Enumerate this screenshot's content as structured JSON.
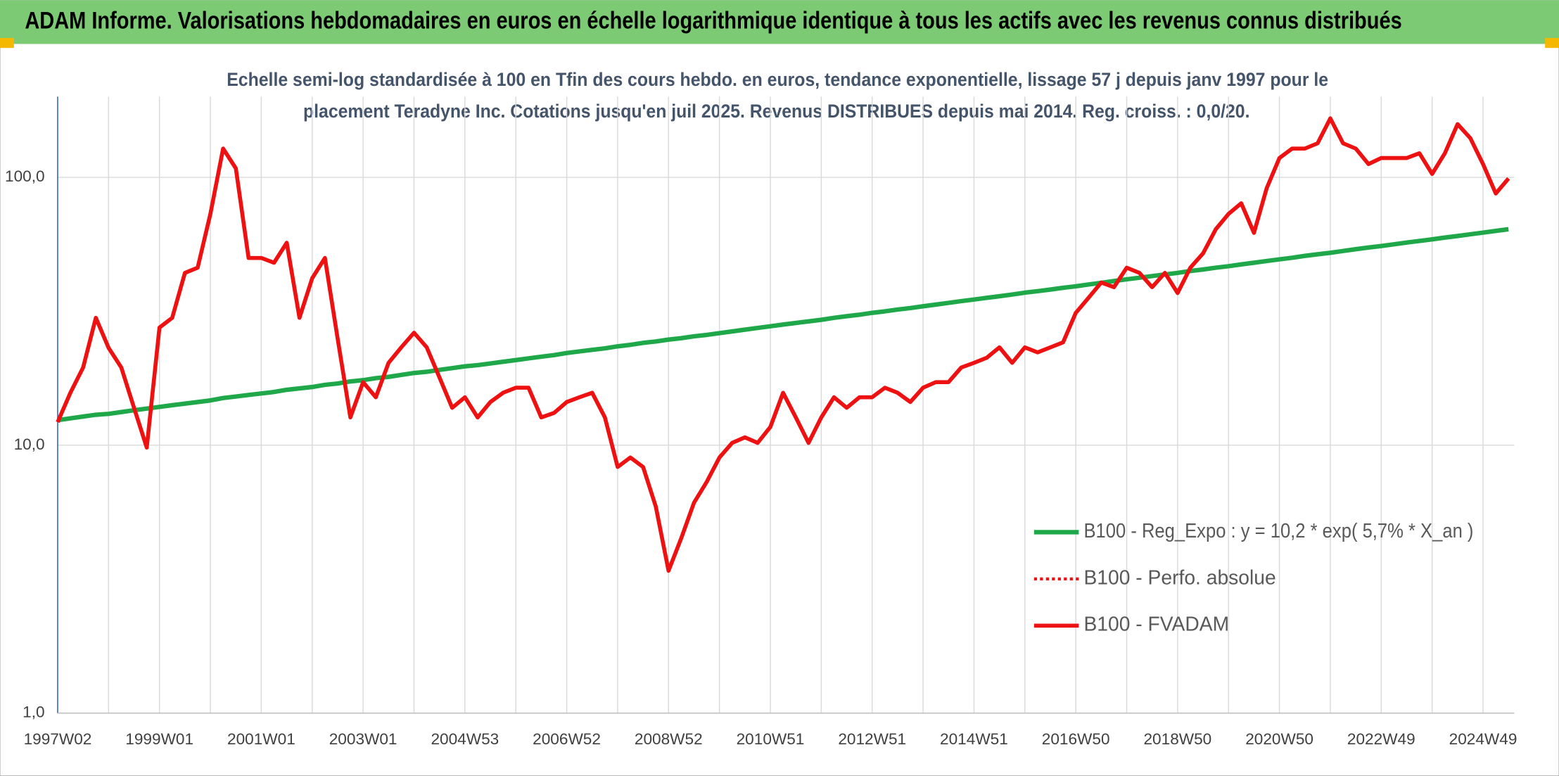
{
  "chart_data": {
    "type": "line",
    "title": "ADAM Informe. Valorisations hebdomadaires en euros en échelle logarithmique identique à tous les actifs avec les revenus connus distribués",
    "subtitle": [
      "Echelle semi-log standardisée à 100 en Tfin des cours hebdo. en euros, tendance exponentielle, lissage 57 j depuis janv 1997 pour le",
      "placement Teradyne Inc. Cotations jusqu'en juil 2025. Revenus DISTRIBUES depuis mai 2014. Reg. croiss. : 0,0/20."
    ],
    "log_scale": true,
    "grid": true,
    "legend": "right",
    "ylim": [
      1,
      200
    ],
    "yticks": [
      {
        "value": 1,
        "label": "1,0"
      },
      {
        "value": 10,
        "label": "10,0"
      },
      {
        "value": 100,
        "label": "100,0"
      }
    ],
    "categories": [
      "1997W02",
      null,
      null,
      null,
      null,
      null,
      null,
      null,
      "1999W01",
      null,
      null,
      null,
      null,
      null,
      null,
      null,
      "2001W01",
      null,
      null,
      null,
      null,
      null,
      null,
      null,
      "2003W01",
      null,
      null,
      null,
      null,
      null,
      null,
      null,
      "2004W53",
      null,
      null,
      null,
      null,
      null,
      null,
      null,
      "2006W52",
      null,
      null,
      null,
      null,
      null,
      null,
      null,
      "2008W52",
      null,
      null,
      null,
      null,
      null,
      null,
      null,
      "2010W51",
      null,
      null,
      null,
      null,
      null,
      null,
      null,
      "2012W51",
      null,
      null,
      null,
      null,
      null,
      null,
      null,
      "2014W51",
      null,
      null,
      null,
      null,
      null,
      null,
      null,
      "2016W50",
      null,
      null,
      null,
      null,
      null,
      null,
      null,
      "2018W50",
      null,
      null,
      null,
      null,
      null,
      null,
      null,
      "2020W50",
      null,
      null,
      null,
      null,
      null,
      null,
      null,
      "2022W49",
      null,
      null,
      null,
      null,
      null,
      null,
      null,
      "2024W49",
      null,
      null
    ],
    "series": [
      {
        "name": "B100 - Reg_Expo : y = 10,2 * exp( 5,7% *  X_an )",
        "color": "#1fa84a",
        "dash": "solid",
        "width": 4.5,
        "values": [
          12.4,
          12.6,
          12.8,
          13.0,
          13.1,
          13.3,
          13.5,
          13.7,
          13.9,
          14.1,
          14.3,
          14.5,
          14.7,
          15.0,
          15.2,
          15.4,
          15.6,
          15.8,
          16.1,
          16.3,
          16.5,
          16.8,
          17.0,
          17.3,
          17.5,
          17.8,
          18.0,
          18.3,
          18.6,
          18.8,
          19.1,
          19.4,
          19.7,
          19.9,
          20.2,
          20.5,
          20.8,
          21.1,
          21.4,
          21.7,
          22.1,
          22.4,
          22.7,
          23.0,
          23.4,
          23.7,
          24.1,
          24.4,
          24.8,
          25.1,
          25.5,
          25.8,
          26.2,
          26.6,
          27.0,
          27.4,
          27.8,
          28.2,
          28.6,
          29.0,
          29.4,
          29.9,
          30.3,
          30.7,
          31.2,
          31.6,
          32.1,
          32.5,
          33.0,
          33.5,
          34.0,
          34.5,
          35.0,
          35.5,
          36.0,
          36.5,
          37.1,
          37.6,
          38.1,
          38.7,
          39.2,
          39.8,
          40.4,
          41.0,
          41.6,
          42.2,
          42.8,
          43.4,
          44.0,
          44.7,
          45.3,
          46.0,
          46.6,
          47.3,
          48.0,
          48.7,
          49.4,
          50.1,
          50.9,
          51.6,
          52.3,
          53.1,
          53.9,
          54.7,
          55.4,
          56.2,
          57.1,
          57.9,
          58.7,
          59.6,
          60.4,
          61.3,
          62.2,
          63.1,
          64.0
        ]
      },
      {
        "name": "B100 - Perfo. absolue",
        "color": "#ee1111",
        "dash": "dotted",
        "width": 3,
        "values": [
          12.2,
          15.7,
          19.5,
          29.9,
          23.1,
          19.5,
          13.8,
          9.8,
          27.5,
          29.9,
          44,
          46,
          73,
          128,
          108,
          50,
          50,
          48,
          57,
          29.9,
          42,
          50,
          25,
          12.7,
          17.2,
          15.1,
          20.3,
          23.2,
          26.3,
          23.2,
          17.9,
          13.8,
          15.1,
          12.7,
          14.5,
          15.7,
          16.4,
          16.4,
          12.7,
          13.2,
          14.5,
          15.1,
          15.7,
          12.7,
          8.3,
          9.0,
          8.3,
          5.9,
          3.4,
          4.5,
          6.1,
          7.3,
          9.0,
          10.2,
          10.7,
          10.2,
          11.7,
          15.7,
          12.7,
          10.2,
          12.7,
          15.1,
          13.8,
          15.1,
          15.1,
          16.4,
          15.7,
          14.5,
          16.4,
          17.2,
          17.2,
          19.5,
          20.3,
          21.2,
          23.2,
          20.3,
          23.2,
          22.2,
          23.2,
          24.2,
          31.2,
          35.5,
          40.5,
          38.9,
          46,
          44,
          38.9,
          44,
          37,
          46,
          52,
          64,
          73,
          80,
          62,
          91,
          118,
          128,
          128,
          134,
          166,
          134,
          128,
          112,
          118,
          118,
          118,
          123,
          103,
          123,
          158,
          140,
          112,
          87,
          99
        ]
      },
      {
        "name": "B100 - FVADAM",
        "color": "#ee1111",
        "dash": "solid",
        "width": 4,
        "values": [
          12.2,
          15.7,
          19.5,
          29.9,
          23.1,
          19.5,
          13.8,
          9.8,
          27.5,
          29.9,
          44,
          46,
          73,
          128,
          108,
          50,
          50,
          48,
          57,
          29.9,
          42,
          50,
          25,
          12.7,
          17.2,
          15.1,
          20.3,
          23.2,
          26.3,
          23.2,
          17.9,
          13.8,
          15.1,
          12.7,
          14.5,
          15.7,
          16.4,
          16.4,
          12.7,
          13.2,
          14.5,
          15.1,
          15.7,
          12.7,
          8.3,
          9.0,
          8.3,
          5.9,
          3.4,
          4.5,
          6.1,
          7.3,
          9.0,
          10.2,
          10.7,
          10.2,
          11.7,
          15.7,
          12.7,
          10.2,
          12.7,
          15.1,
          13.8,
          15.1,
          15.1,
          16.4,
          15.7,
          14.5,
          16.4,
          17.2,
          17.2,
          19.5,
          20.3,
          21.2,
          23.2,
          20.3,
          23.2,
          22.2,
          23.2,
          24.2,
          31.2,
          35.5,
          40.5,
          38.9,
          46,
          44,
          38.9,
          44,
          37,
          46,
          52,
          64,
          73,
          80,
          62,
          91,
          118,
          128,
          128,
          134,
          166,
          134,
          128,
          112,
          118,
          118,
          118,
          123,
          103,
          123,
          158,
          140,
          112,
          87,
          99
        ]
      }
    ]
  }
}
